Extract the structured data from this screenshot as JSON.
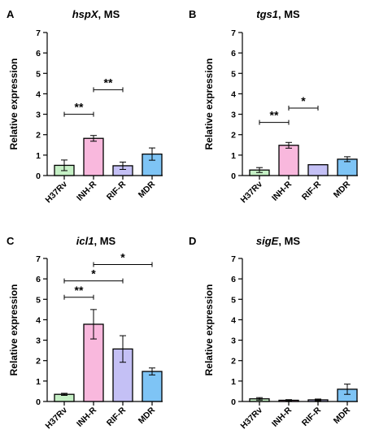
{
  "chart_data": [
    {
      "type": "bar",
      "panel": "A",
      "title_gene": "hspX",
      "title_rest": ", MS",
      "ylabel": "Relative expression",
      "ylim": [
        0,
        7
      ],
      "yticks": [
        "0",
        "1",
        "2",
        "3",
        "4",
        "5",
        "6",
        "7"
      ],
      "categories": [
        "H37Rv",
        "INH-R",
        "RIF-R",
        "MDR"
      ],
      "values": [
        0.5,
        1.82,
        0.48,
        1.05
      ],
      "errors": [
        0.26,
        0.14,
        0.18,
        0.3
      ],
      "colors": [
        "#c5f0c5",
        "#f9b8dd",
        "#c4c0f5",
        "#7ec4f5"
      ],
      "significance": [
        {
          "from": 0,
          "to": 1,
          "y": 3.0,
          "label": "**"
        },
        {
          "from": 1,
          "to": 2,
          "y": 4.2,
          "label": "**"
        }
      ]
    },
    {
      "type": "bar",
      "panel": "B",
      "title_gene": "tgs1",
      "title_rest": ", MS",
      "ylabel": "Relative expression",
      "ylim": [
        0,
        7
      ],
      "yticks": [
        "0",
        "1",
        "2",
        "3",
        "4",
        "5",
        "6",
        "7"
      ],
      "categories": [
        "H37Rv",
        "INH-R",
        "RIF-R",
        "MDR"
      ],
      "values": [
        0.27,
        1.48,
        0.53,
        0.8
      ],
      "errors": [
        0.12,
        0.14,
        0.0,
        0.12
      ],
      "colors": [
        "#c5f0c5",
        "#f9b8dd",
        "#c4c0f5",
        "#7ec4f5"
      ],
      "significance": [
        {
          "from": 0,
          "to": 1,
          "y": 2.6,
          "label": "**"
        },
        {
          "from": 1,
          "to": 2,
          "y": 3.3,
          "label": "*"
        }
      ]
    },
    {
      "type": "bar",
      "panel": "C",
      "title_gene": "icl1",
      "title_rest": ", MS",
      "ylabel": "Relative expression",
      "ylim": [
        0,
        7
      ],
      "yticks": [
        "0",
        "1",
        "2",
        "3",
        "4",
        "5",
        "6",
        "7"
      ],
      "categories": [
        "H37Rv",
        "INH-R",
        "RIF-R",
        "MDR"
      ],
      "values": [
        0.35,
        3.78,
        2.57,
        1.47
      ],
      "errors": [
        0.05,
        0.72,
        0.65,
        0.17
      ],
      "colors": [
        "#c5f0c5",
        "#f9b8dd",
        "#c4c0f5",
        "#7ec4f5"
      ],
      "significance": [
        {
          "from": 0,
          "to": 1,
          "y": 5.1,
          "label": "**"
        },
        {
          "from": 0,
          "to": 2,
          "y": 5.9,
          "label": "*"
        },
        {
          "from": 1,
          "to": 3,
          "y": 6.7,
          "label": "*"
        }
      ]
    },
    {
      "type": "bar",
      "panel": "D",
      "title_gene": "sigE",
      "title_rest": ", MS",
      "ylabel": "Relative expression",
      "ylim": [
        0,
        7
      ],
      "yticks": [
        "0",
        "1",
        "2",
        "3",
        "4",
        "5",
        "6",
        "7"
      ],
      "categories": [
        "H37Rv",
        "INH-R",
        "RIF-R",
        "MDR"
      ],
      "values": [
        0.13,
        0.06,
        0.08,
        0.6
      ],
      "errors": [
        0.06,
        0.03,
        0.04,
        0.25
      ],
      "colors": [
        "#c5f0c5",
        "#f9b8dd",
        "#c4c0f5",
        "#7ec4f5"
      ],
      "significance": []
    }
  ]
}
